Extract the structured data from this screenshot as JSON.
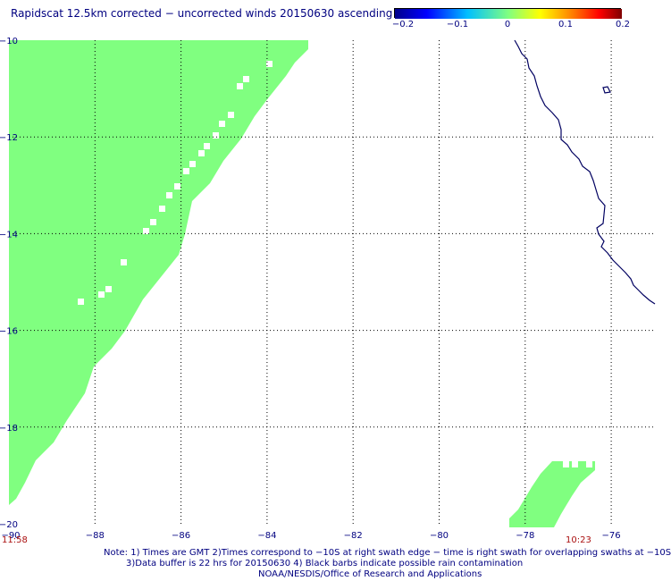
{
  "title": "Rapidscat 12.5km corrected − uncorrected winds 20150630 ascending",
  "colorbar": {
    "ticks": [
      "−0.2",
      "−0.1",
      "0",
      "0.1",
      "0.2"
    ],
    "values": [
      -0.2,
      -0.1,
      0,
      0.1,
      0.2
    ],
    "colors": [
      "#00008b",
      "#0000ff",
      "#00ffff",
      "#80ff80",
      "#ffff00",
      "#ff8000",
      "#ff0000",
      "#7f0000"
    ]
  },
  "map": {
    "lon_range": [
      -90,
      -75
    ],
    "lat_range": [
      -20,
      -10
    ],
    "lat_ticks": [
      "−10",
      "−12",
      "−14",
      "−16",
      "−18",
      "−20"
    ],
    "lon_ticks": [
      "−90",
      "−88",
      "−86",
      "−84",
      "−82",
      "−80",
      "−78",
      "−76"
    ],
    "swath_color": "#80ff80",
    "coast_color": "#000060",
    "grid": true
  },
  "times": {
    "left": "11:58",
    "right": "10:23"
  },
  "notes": {
    "line1": "Note: 1) Times are GMT 2)Times correspond to −10S at right swath edge − time is right swath for overlapping swaths at −10S",
    "line2": "3)Data buffer is 22 hrs for 20150630 4) Black barbs indicate possible rain contamination",
    "line3": "NOAA/NESDIS/Office of Research and Applications"
  }
}
